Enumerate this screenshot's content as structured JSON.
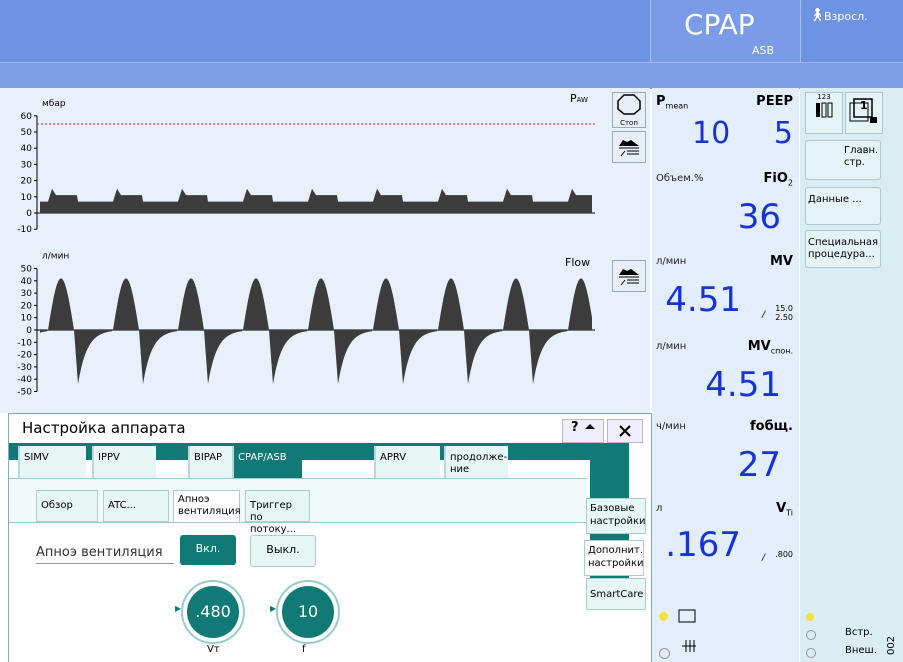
{
  "header": {
    "mode": "CPAP",
    "submode": "ASB",
    "patient": "Взросл."
  },
  "waveforms": [
    {
      "unit": "мбар",
      "label": {
        "main": "P",
        "sub": "AW"
      },
      "yticks": [
        60,
        50,
        40,
        30,
        20,
        10,
        0,
        -10
      ]
    },
    {
      "unit": "л/мин",
      "label": "Flow",
      "yticks": [
        50,
        40,
        30,
        20,
        10,
        0,
        -10,
        -20,
        -30,
        -40,
        -50
      ]
    }
  ],
  "stop_button": "Стоп",
  "pressure": {
    "left_name": {
      "main": "P",
      "sub": "mean"
    },
    "left_value": "10",
    "right_name": "PEEP",
    "right_value": "5"
  },
  "measurements": [
    {
      "unit": "Объем.%",
      "name": {
        "main": "FiO",
        "sub": "2"
      },
      "value": "36"
    },
    {
      "unit": "л/мин",
      "name": {
        "main": "MV",
        "sub": ""
      },
      "value": "4.51",
      "limits": [
        "15.0",
        "2.50"
      ]
    },
    {
      "unit": "л/мин",
      "name": {
        "main": "MV",
        "sub": "спон."
      },
      "value": "4.51"
    },
    {
      "unit": "ч/мин",
      "name": {
        "main": "fобщ.",
        "sub": ""
      },
      "value": "27"
    },
    {
      "unit": "л",
      "name": {
        "main": "V",
        "sub": "Ti"
      },
      "value": ".167",
      "limits": [
        ".800"
      ]
    }
  ],
  "side_menu": {
    "icons": [
      "123",
      "1"
    ],
    "buttons": [
      [
        "Главн.",
        "стр."
      ],
      [
        "Данные ..."
      ],
      [
        "Специальная",
        "процедура..."
      ]
    ]
  },
  "status": [
    "Встр.",
    "Внеш."
  ],
  "dialog": {
    "title": "Настройка аппарата",
    "help": "?",
    "mode_tabs": [
      [
        "SIMV"
      ],
      [
        "IPPV"
      ],
      [
        "BIPAP"
      ],
      [
        "CPAP/ASB"
      ],
      [
        "APRV"
      ],
      [
        "продолже-",
        "ние"
      ]
    ],
    "sub_tabs": [
      [
        "Обзор"
      ],
      [
        "ATC..."
      ],
      [
        "Апноэ",
        "вентиляция"
      ],
      [
        "Триггер по",
        "потоку..."
      ]
    ],
    "side_tabs": [
      [
        "Базовые",
        "настройки"
      ],
      [
        "Дополнит.",
        "настройки"
      ],
      [
        "SmartCare"
      ]
    ],
    "field_label": "Апноэ вентиляция",
    "options": [
      "Вкл.",
      "Выкл."
    ],
    "knobs": [
      {
        "value": ".480",
        "label": "Vт"
      },
      {
        "value": "10",
        "label": "f"
      }
    ]
  },
  "footer_code": "002"
}
